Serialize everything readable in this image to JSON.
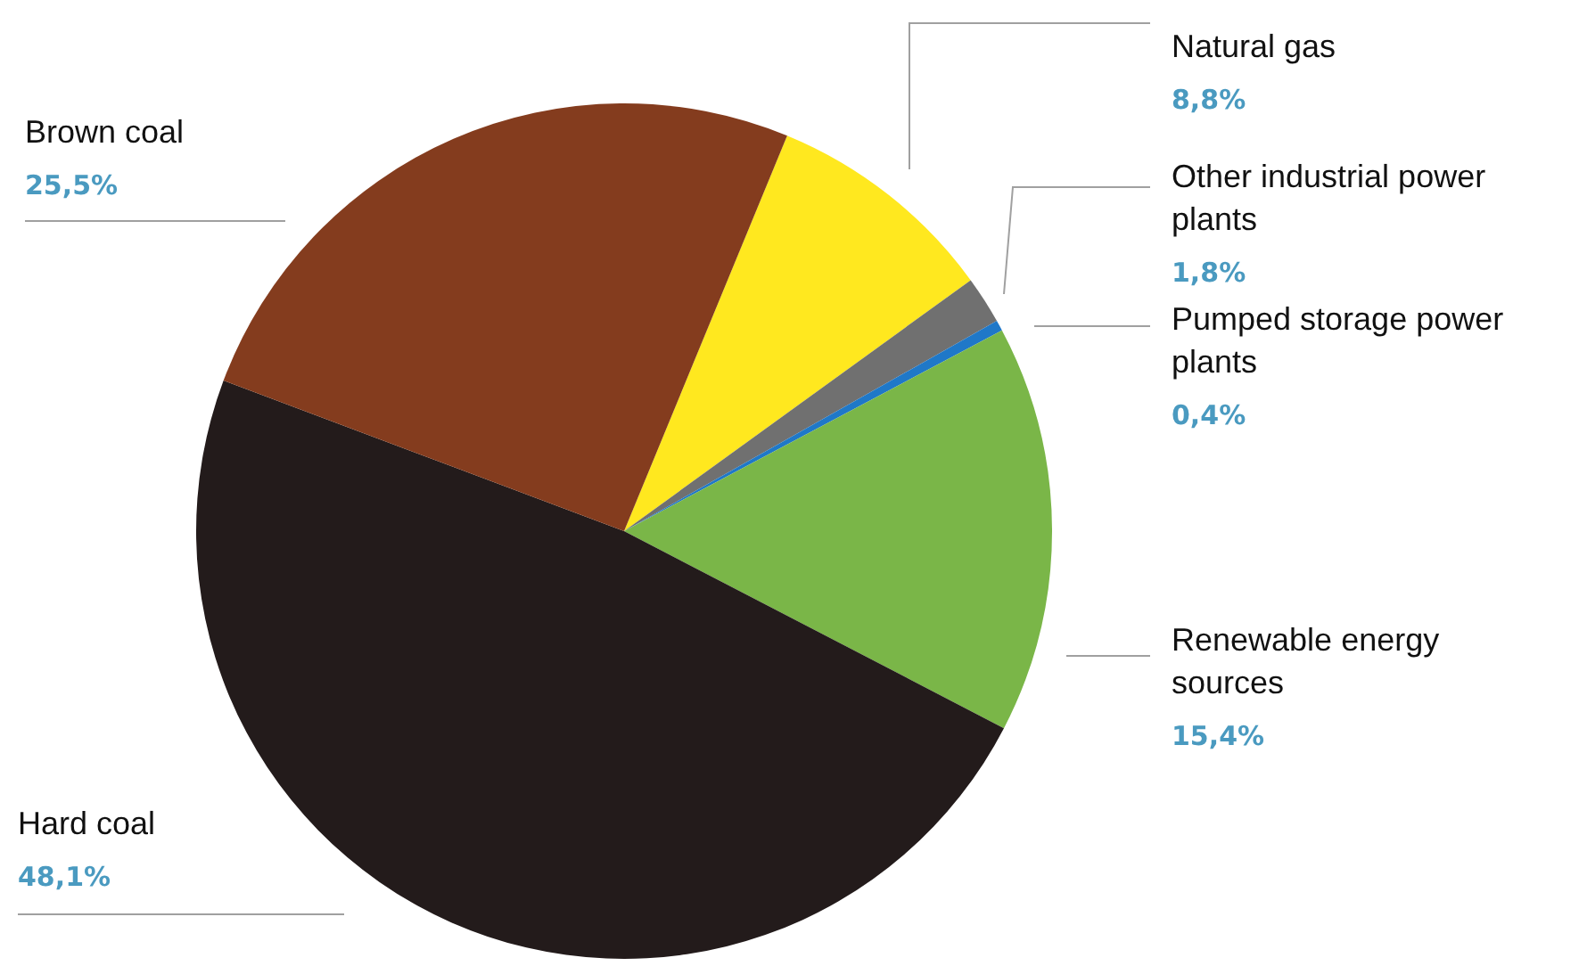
{
  "chart_data": {
    "type": "pie",
    "categories": [
      "Natural gas",
      "Other industrial power plants",
      "Pumped storage power plants",
      "Renewable energy sources",
      "Hard coal",
      "Brown coal"
    ],
    "values": [
      8.8,
      1.8,
      0.4,
      15.4,
      48.1,
      25.5
    ],
    "value_labels": [
      "8,8%",
      "1,8%",
      "0,4%",
      "15,4%",
      "48,1%",
      "25,5%"
    ],
    "colors": [
      "#ffe81f",
      "#707070",
      "#1f78c8",
      "#7ab648",
      "#231b1b",
      "#843c1e"
    ],
    "legend": false
  }
}
